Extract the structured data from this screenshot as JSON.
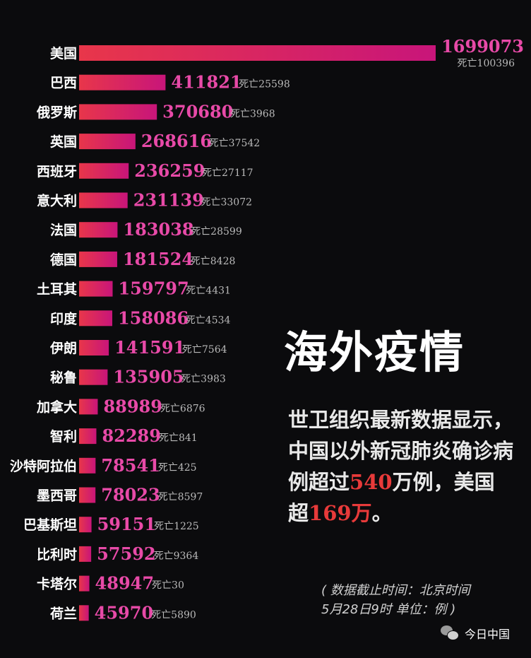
{
  "chart_data": {
    "type": "bar",
    "orientation": "horizontal",
    "categories": [
      "美国",
      "巴西",
      "俄罗斯",
      "英国",
      "西班牙",
      "意大利",
      "法国",
      "德国",
      "土耳其",
      "印度",
      "伊朗",
      "秘鲁",
      "加拿大",
      "智利",
      "沙特阿拉伯",
      "墨西哥",
      "巴基斯坦",
      "比利时",
      "卡塔尔",
      "荷兰"
    ],
    "values": [
      1699073,
      411821,
      370680,
      268616,
      236259,
      231139,
      183038,
      181524,
      159797,
      158086,
      141591,
      135905,
      88989,
      82289,
      78541,
      78023,
      59151,
      57592,
      48947,
      45970
    ],
    "deaths": [
      100396,
      25598,
      3968,
      37542,
      27117,
      33072,
      28599,
      8428,
      4431,
      4534,
      7564,
      3983,
      6876,
      841,
      425,
      8597,
      1225,
      9364,
      30,
      5890
    ],
    "death_prefix": "死亡",
    "colors": {
      "bar_start": "#e8364a",
      "bar_end": "#c8157a",
      "value_text": "#e84aa8",
      "death_text": "#b9b9b9"
    }
  },
  "title": "海外疫情",
  "subtitle": {
    "part1": "世卫组织最新数据显示，中国以外新冠肺炎确诊病例超过",
    "hl1": "540",
    "part2": "万例，美国超",
    "hl2": "169万",
    "part3": "。"
  },
  "note": {
    "line1": "( 数据截止时间：北京时间",
    "line2": "5月28日9时  单位：例 )"
  },
  "source": {
    "label": "今日中国",
    "icon": "wechat-icon"
  }
}
